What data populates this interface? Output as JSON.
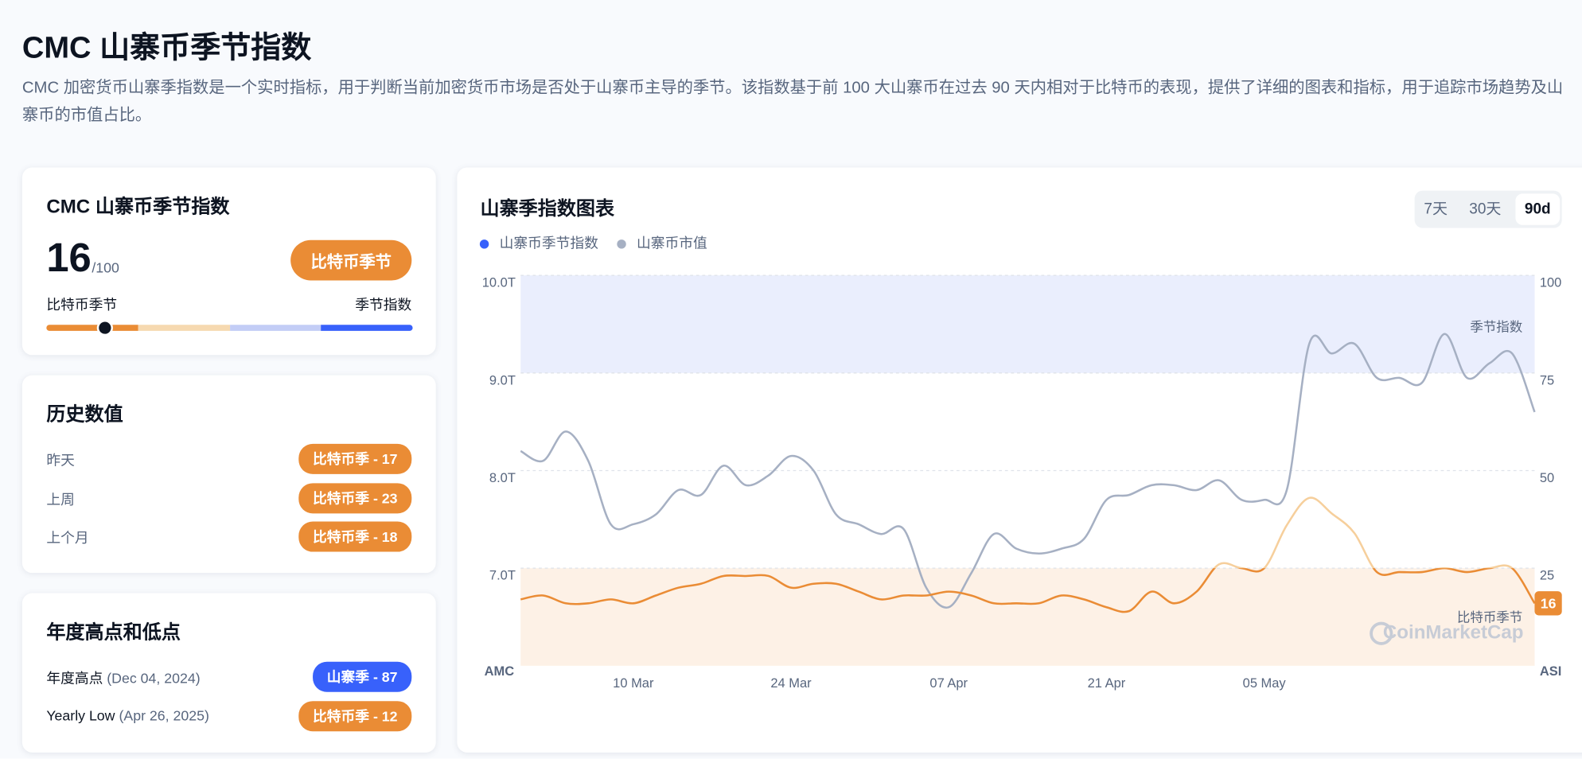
{
  "header": {
    "title": "CMC 山寨币季节指数",
    "description": "CMC 加密货币山寨季指数是一个实时指标，用于判断当前加密货币市场是否处于山寨币主导的季节。该指数基于前 100 大山寨币在过去 90 天内相对于比特币的表现，提供了详细的图表和指标，用于追踪市场趋势及山寨币的市值占比。"
  },
  "index_card": {
    "title": "CMC 山寨币季节指数",
    "score": 16,
    "max": "/100",
    "badge": "比特币季节",
    "badge_color": "#ea8c35",
    "scale_left": "比特币季节",
    "scale_right": "季节指数",
    "scale_colors": [
      "#ea8c35",
      "#f6d9b0",
      "#c3cdf6",
      "#3861fb"
    ]
  },
  "history": {
    "title": "历史数值",
    "rows": [
      {
        "label": "昨天",
        "badge": "比特币季 - 17",
        "color": "#ea8c35"
      },
      {
        "label": "上周",
        "badge": "比特币季 - 23",
        "color": "#ea8c35"
      },
      {
        "label": "上个月",
        "badge": "比特币季 - 18",
        "color": "#ea8c35"
      }
    ]
  },
  "yearly": {
    "title": "年度高点和低点",
    "rows": [
      {
        "label": "年度高点",
        "date": "(Dec 04, 2024)",
        "badge": "山寨季 - 87",
        "color": "#3861fb"
      },
      {
        "label": "Yearly Low",
        "date": "(Apr 26, 2025)",
        "badge": "比特币季 - 12",
        "color": "#ea8c35"
      }
    ]
  },
  "chart_data": {
    "type": "line",
    "title": "山寨季指数图表",
    "tabs": [
      "7天",
      "30天",
      "90d"
    ],
    "active_tab": 2,
    "x": [
      "28 Feb",
      "02 Mar",
      "04 Mar",
      "06 Mar",
      "08 Mar",
      "10 Mar",
      "12 Mar",
      "14 Mar",
      "16 Mar",
      "18 Mar",
      "20 Mar",
      "22 Mar",
      "24 Mar",
      "26 Mar",
      "28 Mar",
      "30 Mar",
      "01 Apr",
      "03 Apr",
      "05 Apr",
      "07 Apr",
      "09 Apr",
      "11 Apr",
      "13 Apr",
      "15 Apr",
      "17 Apr",
      "19 Apr",
      "21 Apr",
      "23 Apr",
      "25 Apr",
      "27 Apr",
      "29 Apr",
      "01 May",
      "03 May",
      "05 May",
      "07 May",
      "09 May",
      "11 May",
      "13 May",
      "15 May",
      "17 May",
      "19 May",
      "21 May",
      "23 May",
      "25 May",
      "27 May",
      "29 May"
    ],
    "xticks": [
      "10 Mar",
      "24 Mar",
      "07 Apr",
      "21 Apr",
      "05 May"
    ],
    "series": [
      {
        "name": "山寨币季节指数",
        "color": "#ea8c35",
        "legend_color": "#3861fb",
        "high_color": "#f6cf9c",
        "axis": "y2",
        "values": [
          17,
          18,
          16,
          16,
          17,
          16,
          18,
          20,
          21,
          23,
          23,
          23,
          20,
          21,
          21,
          19,
          17,
          18,
          18,
          19,
          18,
          16,
          16,
          16,
          18,
          17,
          15,
          14,
          19,
          16,
          19,
          26,
          25,
          25,
          36,
          43,
          39,
          34,
          24,
          24,
          24,
          25,
          24,
          25,
          25,
          16
        ]
      },
      {
        "name": "山寨币市值",
        "color": "#a6b0c3",
        "values": [
          8.2,
          8.1,
          8.4,
          8.1,
          7.45,
          7.45,
          7.55,
          7.8,
          7.75,
          8.05,
          7.85,
          7.95,
          8.15,
          8.0,
          7.55,
          7.45,
          7.35,
          7.4,
          6.8,
          6.6,
          6.95,
          7.35,
          7.2,
          7.15,
          7.2,
          7.3,
          7.7,
          7.75,
          7.85,
          7.85,
          7.8,
          7.9,
          7.7,
          7.7,
          7.8,
          9.3,
          9.2,
          9.3,
          8.95,
          8.95,
          8.9,
          9.4,
          8.95,
          9.1,
          9.2,
          8.6
        ]
      }
    ],
    "ylim": [
      6,
      10
    ],
    "yticks": [
      {
        "value": 7,
        "label": "7.0T"
      },
      {
        "value": 8,
        "label": "8.0T"
      },
      {
        "value": 9,
        "label": "9.0T"
      },
      {
        "value": 10,
        "label": "10.0T"
      }
    ],
    "y2lim": [
      0,
      100
    ],
    "y2ticks": [
      25,
      50,
      75,
      100
    ],
    "ylabel": "AMC",
    "y2label": "ASI",
    "grid": true,
    "bands": [
      {
        "from": 75,
        "to": 100,
        "color": "#eaeefd",
        "label": "季节指数"
      },
      {
        "from": 0,
        "to": 25,
        "color": "#fdf1e6",
        "label": "比特币季节"
      }
    ],
    "watermark": "CoinMarketCap"
  }
}
